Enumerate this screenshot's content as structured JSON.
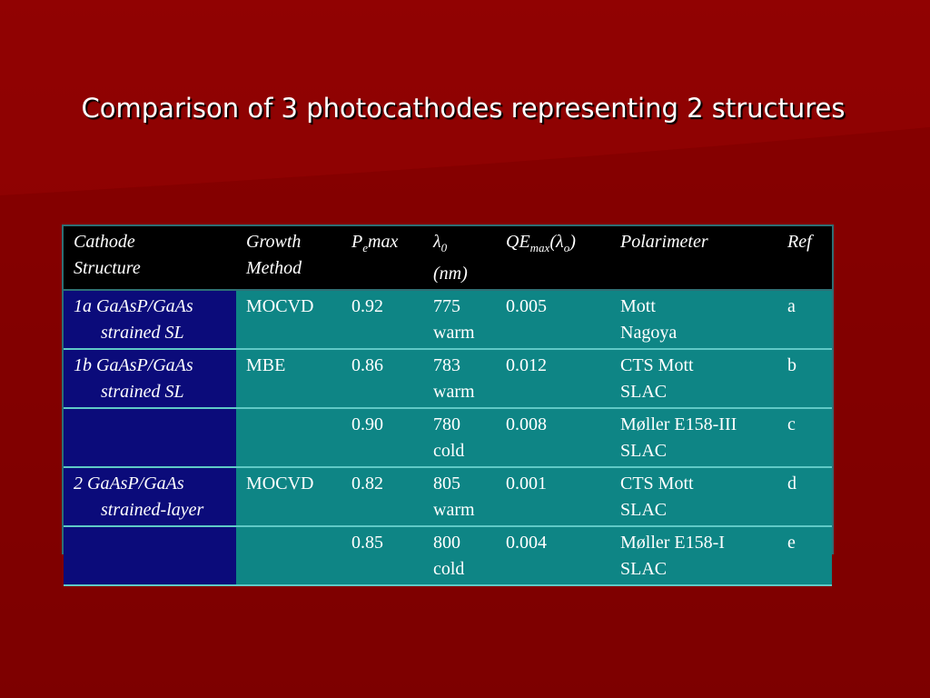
{
  "slide": {
    "title": "Comparison of 3 photocathodes representing 2 structures"
  },
  "table": {
    "headers": {
      "cathode_1": "Cathode",
      "cathode_2": "Structure",
      "growth_1": "Growth",
      "growth_2": "Method",
      "pe_main": "P",
      "pe_sub": "e",
      "pe_tail": "max",
      "lambda_symbol": "λ",
      "lambda_sub": "0",
      "lambda_unit": "(nm)",
      "qe_main": "QE",
      "qe_sub": "max",
      "qe_paren_open": "(",
      "qe_lambda": "λ",
      "qe_lambda_sub": "o",
      "qe_paren_close": ")",
      "polarimeter": "Polarimeter",
      "ref": "Ref"
    },
    "rows": [
      {
        "cathode_1": "1a GaAsP/GaAs",
        "cathode_2": "strained SL",
        "growth": "MOCVD",
        "pe": "0.92",
        "lambda_1": "775",
        "lambda_2": "warm",
        "qe": "0.005",
        "pol_1": "Mott",
        "pol_2": "Nagoya",
        "ref": "a"
      },
      {
        "cathode_1": "1b GaAsP/GaAs",
        "cathode_2": "strained SL",
        "growth": "MBE",
        "pe": "0.86",
        "lambda_1": "783",
        "lambda_2": "warm",
        "qe": "0.012",
        "pol_1": "CTS Mott",
        "pol_2": "SLAC",
        "ref": "b"
      },
      {
        "cathode_1": "",
        "cathode_2": "",
        "growth": "",
        "pe": "0.90",
        "lambda_1": "780",
        "lambda_2": "cold",
        "qe": "0.008",
        "pol_1": "Møller E158-III",
        "pol_2": "SLAC",
        "ref": "c"
      },
      {
        "cathode_1": "2 GaAsP/GaAs",
        "cathode_2": "strained-layer",
        "growth": "MOCVD",
        "pe": "0.82",
        "lambda_1": "805",
        "lambda_2": "warm",
        "qe": "0.001",
        "pol_1": "CTS Mott",
        "pol_2": "SLAC",
        "ref": "d"
      },
      {
        "cathode_1": "",
        "cathode_2": "",
        "growth": "",
        "pe": "0.85",
        "lambda_1": "800",
        "lambda_2": "cold",
        "qe": "0.004",
        "pol_1": "Møller E158-I",
        "pol_2": "SLAC",
        "ref": "e"
      }
    ]
  },
  "colors": {
    "background": "#7d0000",
    "header_bg": "#000000",
    "cell_bg": "#0e8585",
    "cathode_bg": "#0b0b7a",
    "rule": "#5fc9c6"
  }
}
